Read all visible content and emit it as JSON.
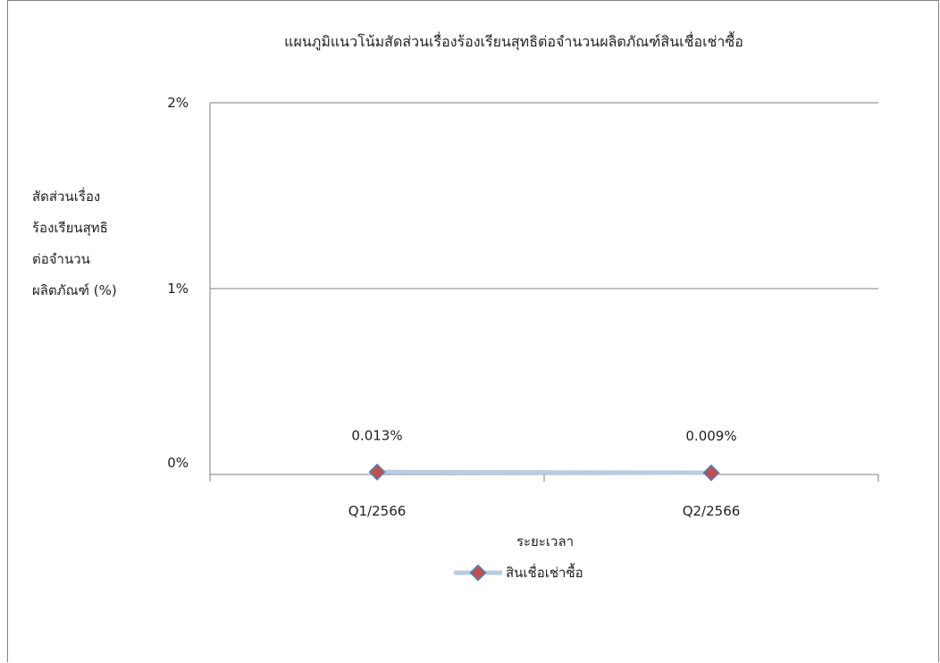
{
  "chart_data": {
    "type": "line",
    "title": "แผนภูมิแนวโน้มสัดส่วนเรื่องร้องเรียนสุทธิต่อจำนวนผลิตภัณฑ์สินเชื่อเช่าซื้อ",
    "xlabel": "ระยะเวลา",
    "ylabel_lines": [
      "สัดส่วนเรื่อง",
      "ร้องเรียนสุทธิ",
      "ต่อจำนวน",
      "ผลิตภัณฑ์ (%)"
    ],
    "categories": [
      "Q1/2566",
      "Q2/2566"
    ],
    "series": [
      {
        "name": "สินเชื่อเช่าซื้อ",
        "values": [
          0.013,
          0.009
        ],
        "data_labels": [
          "0.013%",
          "0.009%"
        ]
      }
    ],
    "ylim": [
      0,
      2
    ],
    "y_ticks": [
      {
        "value": 0,
        "label": "0%"
      },
      {
        "value": 1,
        "label": "1%"
      },
      {
        "value": 2,
        "label": "2%"
      }
    ],
    "grid": true,
    "legend_position": "bottom",
    "colors": {
      "line": "#b8cce4",
      "marker_fill": "#c0504d",
      "marker_stroke": "#4f81bd",
      "axis": "#7f7f7f",
      "grid": "#7f7f7f"
    }
  }
}
